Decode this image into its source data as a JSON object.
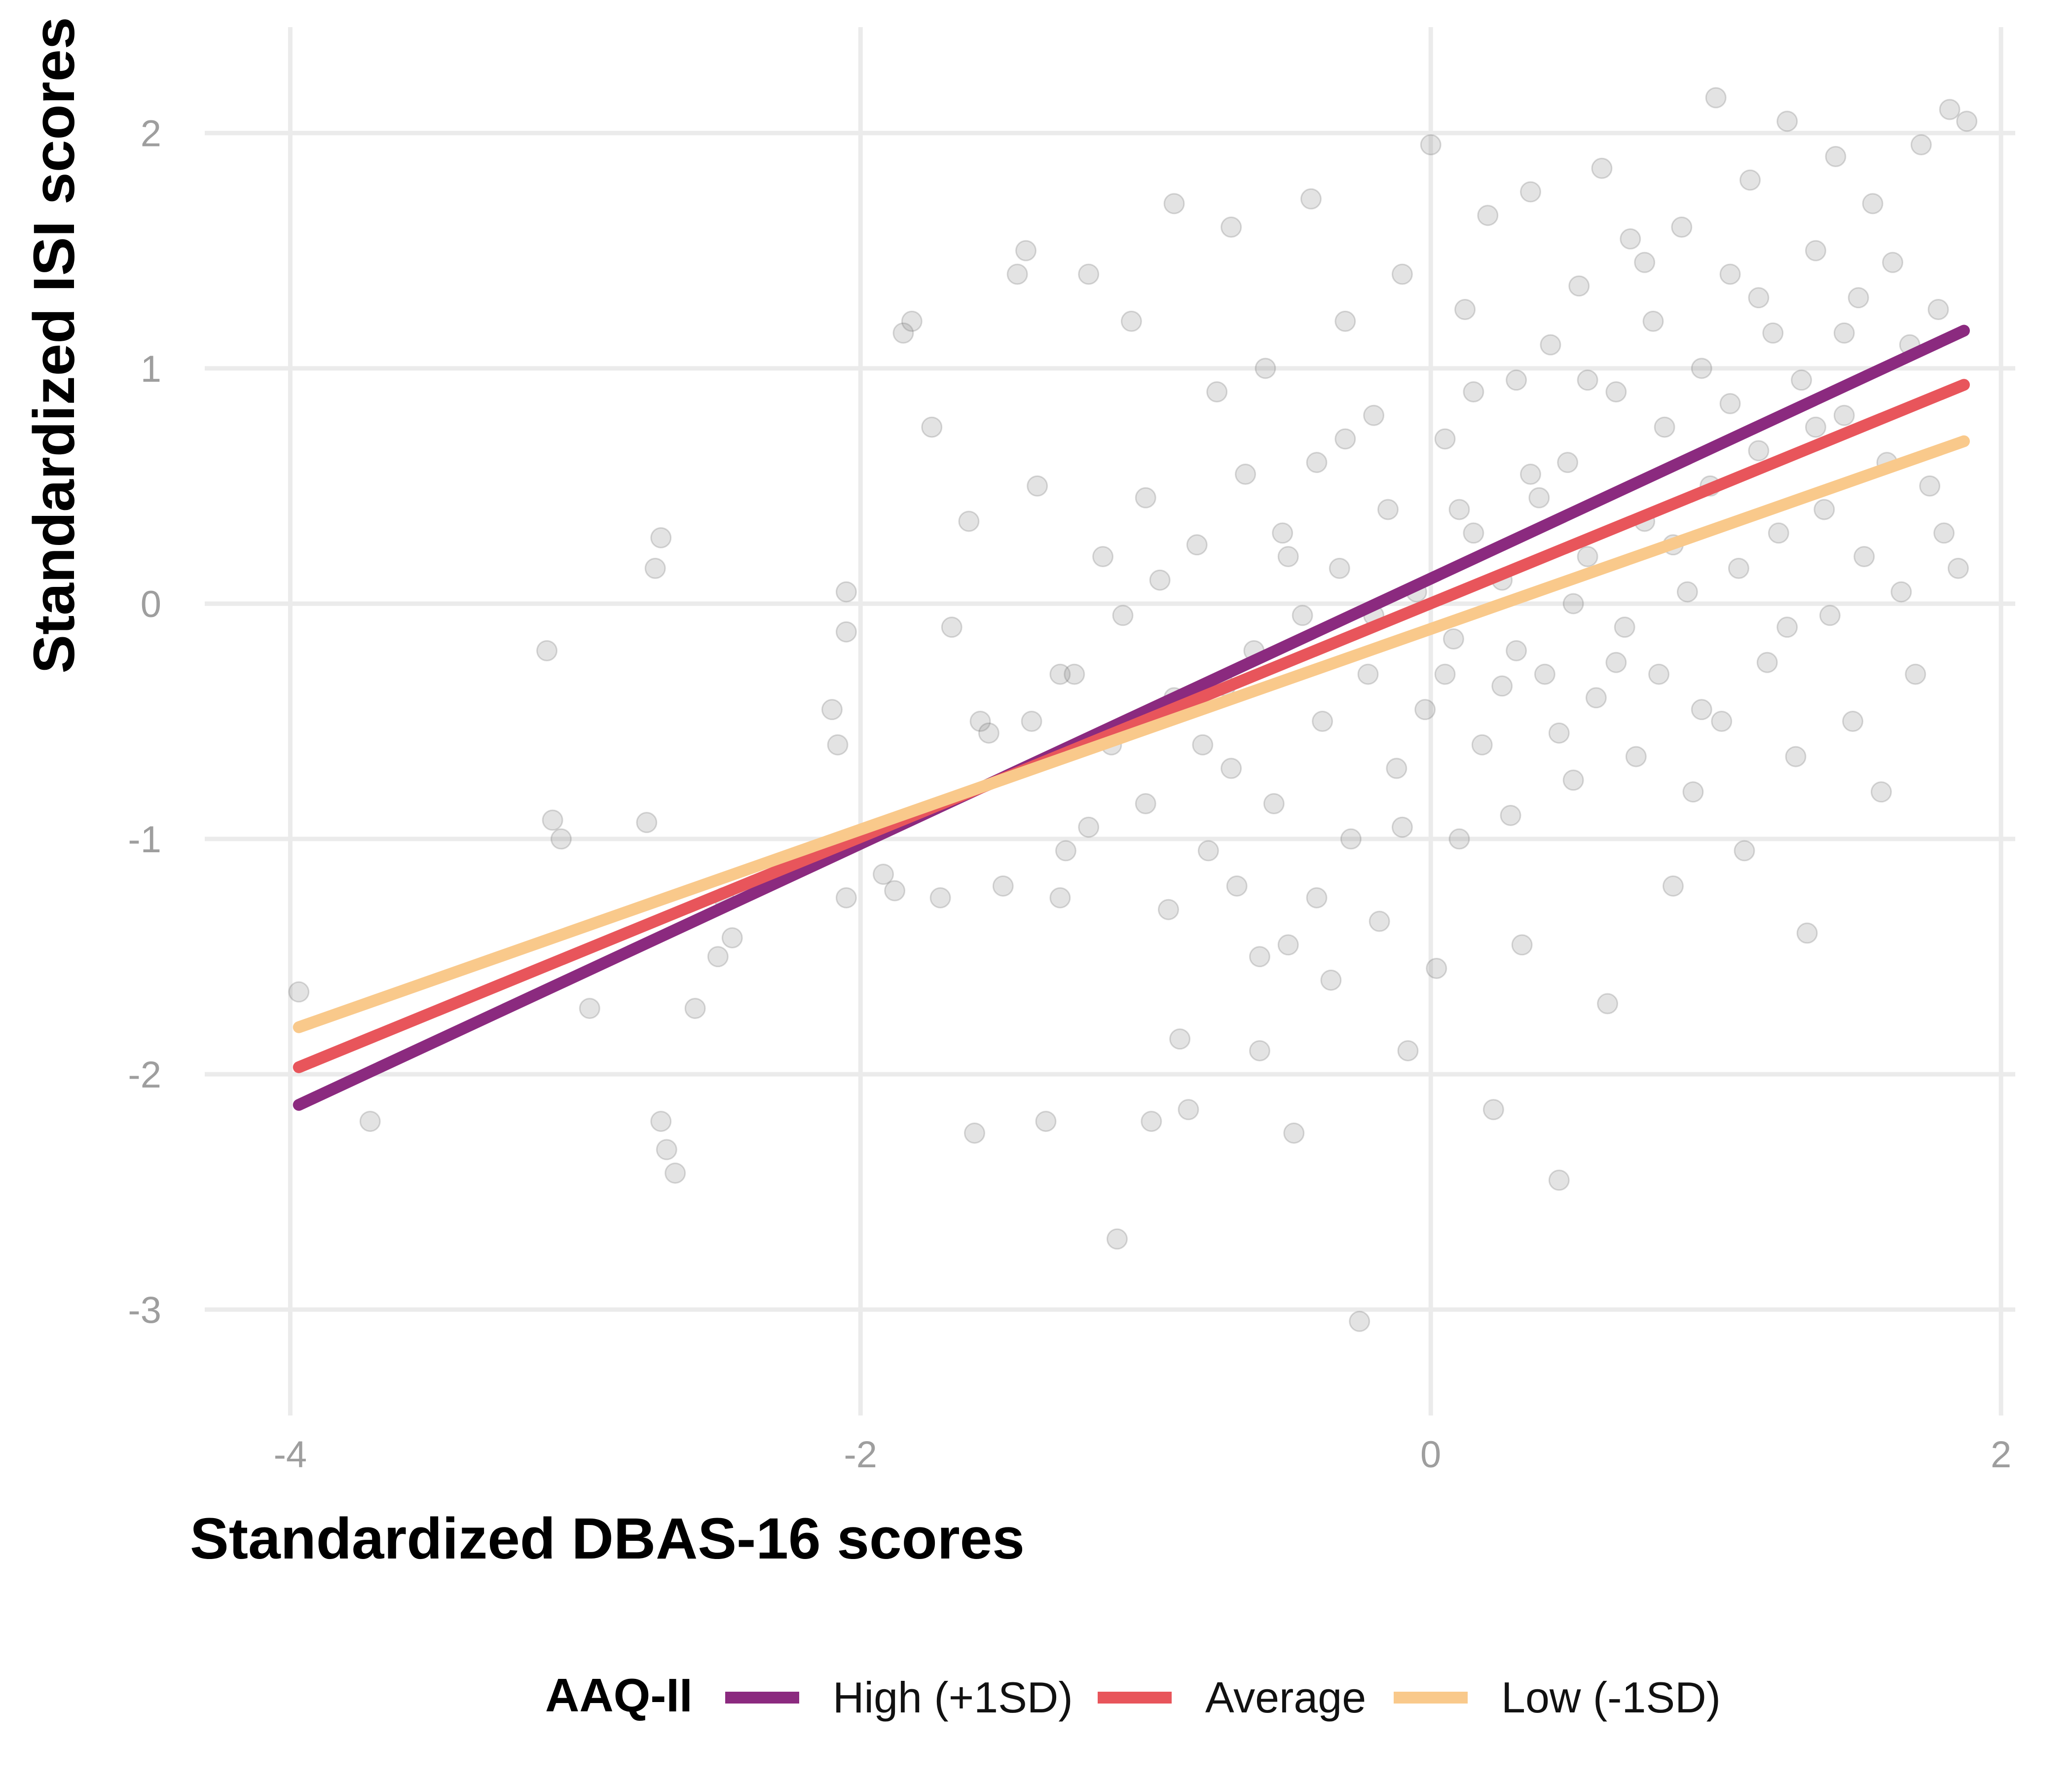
{
  "chart_data": {
    "type": "scatter",
    "title": "",
    "xlabel": "Standardized DBAS-16 scores",
    "ylabel": "Standardized ISI scores",
    "xlim": [
      -4.3,
      2.05
    ],
    "ylim": [
      -3.45,
      2.45
    ],
    "xticks": [
      {
        "value": -4,
        "label": "-4"
      },
      {
        "value": -2,
        "label": "-2"
      },
      {
        "value": 0,
        "label": "0"
      },
      {
        "value": 2,
        "label": "2"
      }
    ],
    "yticks": [
      {
        "value": -3,
        "label": "-3"
      },
      {
        "value": -2,
        "label": "-2"
      },
      {
        "value": -1,
        "label": "-1"
      },
      {
        "value": 0,
        "label": "0"
      },
      {
        "value": 1,
        "label": "1"
      },
      {
        "value": 2,
        "label": "2"
      }
    ],
    "grid": true,
    "legend": {
      "title": "AAQ-II",
      "position": "bottom"
    },
    "points": {
      "color": "#7f7f7f",
      "opacity": 0.22,
      "data": [
        [
          -3.97,
          -1.65
        ],
        [
          -3.72,
          -2.2
        ],
        [
          -3.1,
          -0.2
        ],
        [
          -3.08,
          -0.92
        ],
        [
          -3.05,
          -1.0
        ],
        [
          -2.95,
          -1.72
        ],
        [
          -2.75,
          -0.93
        ],
        [
          -2.7,
          0.28
        ],
        [
          -2.72,
          0.15
        ],
        [
          -2.7,
          -2.2
        ],
        [
          -2.68,
          -2.32
        ],
        [
          -2.65,
          -2.42
        ],
        [
          -2.58,
          -1.72
        ],
        [
          -2.5,
          -1.5
        ],
        [
          -2.48,
          -1.25
        ],
        [
          -2.45,
          -1.42
        ],
        [
          -2.1,
          -0.45
        ],
        [
          -2.05,
          0.05
        ],
        [
          -2.05,
          -0.12
        ],
        [
          -2.08,
          -0.6
        ],
        [
          -2.05,
          -1.25
        ],
        [
          -1.92,
          -1.15
        ],
        [
          -1.88,
          -1.22
        ],
        [
          -1.85,
          1.15
        ],
        [
          -1.82,
          1.2
        ],
        [
          -1.75,
          0.75
        ],
        [
          -1.72,
          -1.25
        ],
        [
          -1.68,
          -0.1
        ],
        [
          -1.62,
          0.35
        ],
        [
          -1.58,
          -0.5
        ],
        [
          -1.55,
          -0.55
        ],
        [
          -1.5,
          -1.2
        ],
        [
          -1.45,
          1.4
        ],
        [
          -1.42,
          1.5
        ],
        [
          -1.4,
          -0.5
        ],
        [
          -1.38,
          0.5
        ],
        [
          -1.35,
          -2.2
        ],
        [
          -1.3,
          -0.3
        ],
        [
          -1.28,
          -1.05
        ],
        [
          -1.25,
          -0.3
        ],
        [
          -1.2,
          1.4
        ],
        [
          -1.15,
          0.2
        ],
        [
          -1.12,
          -0.6
        ],
        [
          -1.1,
          -2.7
        ],
        [
          -1.08,
          -0.05
        ],
        [
          -1.05,
          1.2
        ],
        [
          -1.0,
          -0.85
        ],
        [
          -0.98,
          -2.2
        ],
        [
          -0.95,
          0.1
        ],
        [
          -0.92,
          -1.3
        ],
        [
          -0.9,
          -0.4
        ],
        [
          -0.88,
          -1.85
        ],
        [
          -0.85,
          -2.15
        ],
        [
          -0.82,
          0.25
        ],
        [
          -0.8,
          -0.6
        ],
        [
          -0.78,
          -1.05
        ],
        [
          -0.75,
          0.9
        ],
        [
          -0.72,
          -0.35
        ],
        [
          -0.7,
          1.6
        ],
        [
          -0.68,
          -1.2
        ],
        [
          -0.65,
          0.55
        ],
        [
          -0.62,
          -0.2
        ],
        [
          -0.6,
          -1.9
        ],
        [
          -0.58,
          1.0
        ],
        [
          -0.55,
          -0.85
        ],
        [
          -0.52,
          0.3
        ],
        [
          -0.5,
          -1.45
        ],
        [
          -0.48,
          -2.25
        ],
        [
          -0.45,
          -0.05
        ],
        [
          -0.42,
          1.72
        ],
        [
          -0.4,
          0.6
        ],
        [
          -0.38,
          -0.5
        ],
        [
          -0.35,
          -1.6
        ],
        [
          -0.32,
          0.15
        ],
        [
          -0.3,
          1.2
        ],
        [
          -0.28,
          -1.0
        ],
        [
          -0.25,
          -3.05
        ],
        [
          -0.22,
          -0.3
        ],
        [
          -0.2,
          0.8
        ],
        [
          -0.18,
          -1.35
        ],
        [
          -0.15,
          0.4
        ],
        [
          -0.12,
          -0.7
        ],
        [
          -0.1,
          1.4
        ],
        [
          -0.08,
          -1.9
        ],
        [
          -0.05,
          0.05
        ],
        [
          -0.02,
          -0.45
        ],
        [
          0.0,
          1.95
        ],
        [
          0.02,
          -1.55
        ],
        [
          0.05,
          0.7
        ],
        [
          0.08,
          -0.15
        ],
        [
          0.1,
          -1.0
        ],
        [
          0.12,
          1.25
        ],
        [
          0.15,
          0.3
        ],
        [
          0.18,
          -0.6
        ],
        [
          0.2,
          1.65
        ],
        [
          0.22,
          -2.15
        ],
        [
          0.25,
          0.1
        ],
        [
          0.28,
          -0.9
        ],
        [
          0.3,
          0.95
        ],
        [
          0.32,
          -1.45
        ],
        [
          0.35,
          1.75
        ],
        [
          0.38,
          0.45
        ],
        [
          0.4,
          -0.3
        ],
        [
          0.42,
          1.1
        ],
        [
          0.45,
          -2.45
        ],
        [
          0.48,
          0.6
        ],
        [
          0.5,
          -0.75
        ],
        [
          0.52,
          1.35
        ],
        [
          0.55,
          0.2
        ],
        [
          0.58,
          -0.4
        ],
        [
          0.6,
          1.85
        ],
        [
          0.62,
          -1.7
        ],
        [
          0.65,
          0.9
        ],
        [
          0.68,
          -0.1
        ],
        [
          0.7,
          1.55
        ],
        [
          0.72,
          -0.65
        ],
        [
          0.75,
          0.35
        ],
        [
          0.78,
          1.2
        ],
        [
          0.8,
          -0.3
        ],
        [
          0.82,
          0.75
        ],
        [
          0.85,
          -1.2
        ],
        [
          0.88,
          1.6
        ],
        [
          0.9,
          0.05
        ],
        [
          0.92,
          -0.8
        ],
        [
          0.95,
          1.0
        ],
        [
          0.98,
          0.5
        ],
        [
          1.0,
          2.15
        ],
        [
          1.02,
          -0.5
        ],
        [
          1.05,
          1.4
        ],
        [
          1.08,
          0.15
        ],
        [
          1.1,
          -1.05
        ],
        [
          1.12,
          1.8
        ],
        [
          1.15,
          0.65
        ],
        [
          1.18,
          -0.25
        ],
        [
          1.2,
          1.15
        ],
        [
          1.22,
          0.3
        ],
        [
          1.25,
          2.05
        ],
        [
          1.28,
          -0.65
        ],
        [
          1.3,
          0.95
        ],
        [
          1.32,
          -1.4
        ],
        [
          1.35,
          1.5
        ],
        [
          1.38,
          0.4
        ],
        [
          1.4,
          -0.05
        ],
        [
          1.42,
          1.9
        ],
        [
          1.45,
          0.8
        ],
        [
          1.48,
          -0.5
        ],
        [
          1.5,
          1.3
        ],
        [
          1.52,
          0.2
        ],
        [
          1.55,
          1.7
        ],
        [
          1.58,
          -0.8
        ],
        [
          1.6,
          0.6
        ],
        [
          1.62,
          1.45
        ],
        [
          1.65,
          0.05
        ],
        [
          1.68,
          1.1
        ],
        [
          1.7,
          -0.3
        ],
        [
          1.72,
          1.95
        ],
        [
          1.75,
          0.5
        ],
        [
          1.78,
          1.25
        ],
        [
          1.8,
          0.3
        ],
        [
          1.82,
          2.1
        ],
        [
          1.85,
          0.15
        ],
        [
          1.88,
          2.05
        ],
        [
          -1.6,
          -2.25
        ],
        [
          -1.3,
          -1.25
        ],
        [
          -1.2,
          -0.95
        ],
        [
          -1.0,
          0.45
        ],
        [
          -0.9,
          1.7
        ],
        [
          -0.7,
          -0.7
        ],
        [
          -0.6,
          -1.5
        ],
        [
          -0.5,
          0.2
        ],
        [
          -0.4,
          -1.25
        ],
        [
          -0.3,
          0.7
        ],
        [
          -0.2,
          -0.05
        ],
        [
          -0.1,
          -0.95
        ],
        [
          0.05,
          -0.3
        ],
        [
          0.15,
          0.9
        ],
        [
          0.25,
          -0.35
        ],
        [
          0.35,
          0.55
        ],
        [
          0.45,
          -0.55
        ],
        [
          0.55,
          0.95
        ],
        [
          0.65,
          -0.25
        ],
        [
          0.75,
          1.45
        ],
        [
          0.85,
          0.25
        ],
        [
          0.95,
          -0.45
        ],
        [
          1.05,
          0.85
        ],
        [
          1.15,
          1.3
        ],
        [
          1.25,
          -0.1
        ],
        [
          1.35,
          0.75
        ],
        [
          1.45,
          1.15
        ],
        [
          0.5,
          0.0
        ],
        [
          0.3,
          -0.2
        ],
        [
          0.1,
          0.4
        ]
      ]
    },
    "series": [
      {
        "name": "High (+1SD)",
        "color": "#8B2A7F",
        "x": [
          -3.97,
          1.87
        ],
        "y": [
          -2.13,
          1.16
        ]
      },
      {
        "name": "Average",
        "color": "#E8555B",
        "x": [
          -3.97,
          1.87
        ],
        "y": [
          -1.97,
          0.93
        ]
      },
      {
        "name": "Low (-1SD)",
        "color": "#F9C98B",
        "x": [
          -3.97,
          1.87
        ],
        "y": [
          -1.8,
          0.69
        ]
      }
    ]
  }
}
